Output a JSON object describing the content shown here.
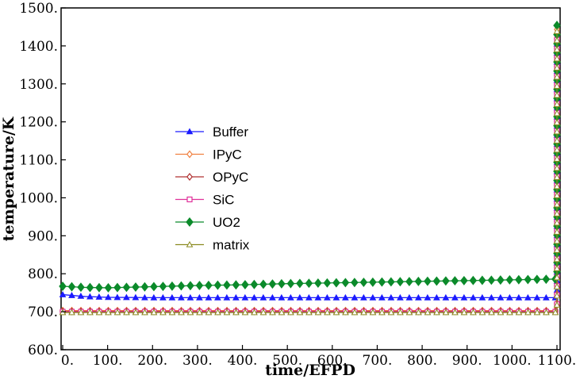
{
  "chart_data": {
    "type": "line",
    "title": "",
    "xlabel": "time/EFPD",
    "ylabel": "temperature/K",
    "xlim": [
      0,
      1100
    ],
    "ylim": [
      600,
      1500
    ],
    "x_ticks": [
      0,
      100,
      200,
      300,
      400,
      500,
      600,
      700,
      800,
      900,
      1000,
      1100
    ],
    "x_tick_labels": [
      "0.",
      "100.",
      "200.",
      "300.",
      "400.",
      "500.",
      "600.",
      "700.",
      "800.",
      "900.",
      "1000.",
      "1100."
    ],
    "y_ticks": [
      600,
      700,
      800,
      900,
      1000,
      1100,
      1200,
      1300,
      1400,
      1500
    ],
    "y_tick_labels": [
      "600.",
      "700.",
      "800.",
      "900.",
      "1000.",
      "1100.",
      "1200.",
      "1300.",
      "1400.",
      "1500."
    ],
    "grid": false,
    "legend_position": "center-left",
    "series": [
      {
        "name": "Buffer",
        "color": "#1a1aff",
        "marker": "triangle",
        "x": [
          0,
          50,
          100,
          200,
          300,
          400,
          500,
          600,
          700,
          800,
          900,
          1000,
          1100,
          1100,
          1100
        ],
        "y": [
          745,
          740,
          738,
          737,
          737,
          737,
          737,
          737,
          737,
          737,
          737,
          737,
          737,
          1050,
          1420
        ]
      },
      {
        "name": "IPyC",
        "color": "#f08040",
        "marker": "diamond-open",
        "x": [
          0,
          100,
          200,
          300,
          400,
          500,
          600,
          700,
          800,
          900,
          1000,
          1100,
          1100,
          1100
        ],
        "y": [
          703,
          703,
          703,
          703,
          703,
          703,
          703,
          703,
          703,
          703,
          703,
          703,
          1050,
          1445
        ]
      },
      {
        "name": "OPyC",
        "color": "#b03030",
        "marker": "diamond-open",
        "x": [
          0,
          100,
          200,
          300,
          400,
          500,
          600,
          700,
          800,
          900,
          1000,
          1100,
          1100,
          1100
        ],
        "y": [
          701,
          701,
          701,
          701,
          701,
          701,
          701,
          701,
          701,
          701,
          701,
          701,
          1050,
          1440
        ]
      },
      {
        "name": "SiC",
        "color": "#e0309a",
        "marker": "square-open",
        "x": [
          0,
          100,
          200,
          300,
          400,
          500,
          600,
          700,
          800,
          900,
          1000,
          1100,
          1100,
          1100
        ],
        "y": [
          700,
          700,
          700,
          700,
          700,
          700,
          700,
          700,
          700,
          700,
          700,
          700,
          1050,
          1440
        ]
      },
      {
        "name": "UO2",
        "color": "#0b8a2a",
        "marker": "diamond",
        "x": [
          0,
          50,
          100,
          200,
          300,
          400,
          500,
          600,
          700,
          800,
          900,
          1000,
          1100,
          1100,
          1100
        ],
        "y": [
          767,
          764,
          763,
          766,
          769,
          771,
          774,
          776,
          778,
          780,
          782,
          784,
          786,
          1100,
          1465
        ]
      },
      {
        "name": "matrix",
        "color": "#8a8a20",
        "marker": "triangle-open",
        "x": [
          0,
          100,
          200,
          300,
          400,
          500,
          600,
          700,
          800,
          900,
          1000,
          1100,
          1100,
          1100
        ],
        "y": [
          698,
          698,
          698,
          698,
          698,
          698,
          698,
          698,
          698,
          698,
          698,
          698,
          1050,
          1440
        ]
      }
    ]
  }
}
